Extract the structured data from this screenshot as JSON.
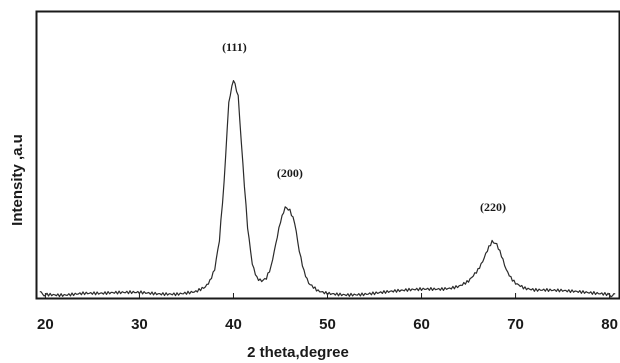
{
  "chart_data": {
    "type": "line",
    "title": "",
    "xlabel": "2 theta,degree",
    "ylabel": "Intensity ,a.u",
    "xlim": [
      19,
      81
    ],
    "ylim": [
      0,
      100
    ],
    "xticks": [
      20,
      30,
      40,
      50,
      60,
      70,
      80
    ],
    "grid": false,
    "series": [
      {
        "x": [
          19.4,
          20,
          22,
          24,
          26,
          28,
          30,
          32,
          34,
          35,
          36,
          37,
          37.5,
          38,
          38.5,
          39,
          39.5,
          40,
          40.5,
          41,
          41.5,
          42,
          42.5,
          43,
          43.5,
          44,
          44.5,
          45,
          45.5,
          46,
          46.5,
          47,
          47.5,
          48,
          49,
          50,
          52,
          54,
          56,
          58,
          60,
          62,
          63,
          64,
          65,
          65.5,
          66,
          66.5,
          67,
          67.5,
          68,
          68.5,
          69,
          69.5,
          70,
          71,
          72,
          74,
          76,
          78,
          80,
          80.6
        ],
        "y": [
          1.0,
          1.5,
          1.0,
          1.2,
          0.8,
          1.0,
          1.3,
          1.2,
          1.5,
          2.0,
          2.5,
          4.0,
          6.0,
          10.0,
          20.0,
          40.0,
          68.0,
          76.0,
          70.0,
          46.0,
          24.0,
          11.0,
          6.0,
          5.0,
          6.0,
          10.0,
          18.0,
          26.0,
          31.0,
          30.0,
          26.0,
          16.0,
          9.0,
          5.0,
          2.5,
          1.8,
          1.3,
          1.2,
          1.5,
          1.8,
          2.2,
          2.5,
          3.0,
          4.0,
          6.0,
          8.0,
          10.0,
          13.0,
          17.0,
          20.0,
          19.0,
          15.0,
          10.0,
          7.0,
          5.0,
          3.0,
          2.2,
          1.8,
          1.5,
          1.3,
          1.2,
          1.1
        ],
        "color": "#2b2b2b"
      }
    ],
    "annotations": [
      {
        "text": "(111)",
        "x": 40.1,
        "y": 86
      },
      {
        "text": "(200)",
        "x": 46.0,
        "y": 42
      },
      {
        "text": "(220)",
        "x": 67.6,
        "y": 30
      }
    ]
  }
}
